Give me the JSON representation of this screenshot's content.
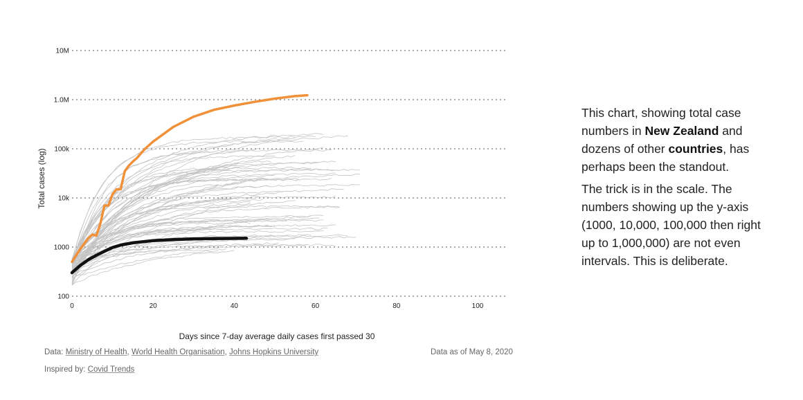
{
  "chart_data": {
    "type": "line",
    "xlabel": "Days since 7-day average daily cases first passed 30",
    "ylabel": "Total cases (log)",
    "y_scale": "log",
    "xlim": [
      0,
      106
    ],
    "ylim": [
      100,
      10000000
    ],
    "x_ticks": [
      0,
      20,
      40,
      60,
      80,
      100
    ],
    "x_tick_labels": [
      "0",
      "20",
      "40",
      "60",
      "80",
      "100"
    ],
    "y_ticks": [
      100,
      1000,
      10000,
      100000,
      1000000,
      10000000
    ],
    "y_tick_labels": [
      "100",
      "1000",
      "10k",
      "100k",
      "1.0M",
      "10M"
    ],
    "grid": "horizontal dotted",
    "highlight_series": [
      {
        "color": "#f0913a",
        "x": [
          0,
          2,
          4,
          5,
          6,
          7,
          8,
          9,
          10,
          11,
          12,
          13,
          14,
          15,
          16,
          18,
          20,
          25,
          30,
          35,
          40,
          45,
          50,
          55,
          58
        ],
        "values": [
          500,
          900,
          1500,
          1800,
          1700,
          3000,
          7000,
          7000,
          12000,
          15000,
          15000,
          35000,
          45000,
          55000,
          65000,
          100000,
          140000,
          280000,
          450000,
          620000,
          760000,
          900000,
          1050000,
          1180000,
          1230000
        ]
      },
      {
        "color": "#111111",
        "x": [
          0,
          2,
          4,
          6,
          8,
          10,
          12,
          15,
          20,
          25,
          30,
          35,
          40,
          43
        ],
        "values": [
          300,
          420,
          550,
          680,
          820,
          980,
          1100,
          1220,
          1350,
          1420,
          1470,
          1490,
          1500,
          1510
        ]
      }
    ],
    "background_series_color": "#c4c4c4"
  },
  "footer": {
    "data_prefix": "Data:",
    "sources": [
      "Ministry of Health",
      "World Health Organisation",
      "Johns Hopkins University"
    ],
    "date_note": "Data as of May 8, 2020",
    "inspired_prefix": "Inspired by:",
    "inspired_link": "Covid Trends"
  },
  "side_text": {
    "p1_a": "This chart, showing total case numbers in ",
    "p1_bold1": "New Zealand",
    "p1_b": " and dozens of other ",
    "p1_bold2": "countries",
    "p1_c": ", has perhaps been the standout.",
    "p2": "The trick is in the scale. The numbers showing up the y-axis (1000, 10,000, 100,000 then right up to 1,000,000) are not even intervals. This is deliberate."
  }
}
